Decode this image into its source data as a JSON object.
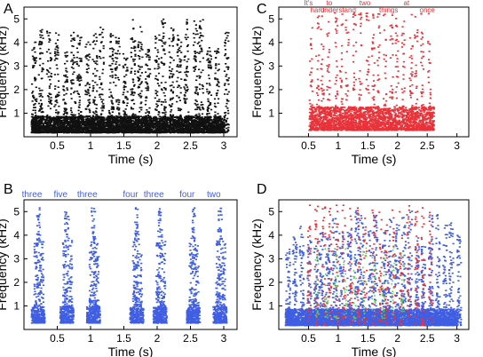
{
  "figure": {
    "panels": [
      {
        "letter": "A",
        "xlabel": "Time (s)",
        "ylabel": "Frequency (kHz)",
        "xticks": [
          "0.5",
          "1",
          "1.5",
          "2",
          "2.5",
          "3"
        ],
        "yticks": [
          "1",
          "2",
          "3",
          "4",
          "5"
        ],
        "words": [],
        "color": "#000000"
      },
      {
        "letter": "C",
        "xlabel": "Time (s)",
        "ylabel": "Frequency (kHz)",
        "xticks": [
          "0.5",
          "1",
          "1.5",
          "2",
          "2.5",
          "3"
        ],
        "yticks": [
          "1",
          "2",
          "3",
          "4",
          "5"
        ],
        "words": [
          "It's",
          "hard",
          "to",
          "understand",
          "two",
          "things",
          "at",
          "once"
        ],
        "color": "#e8333a"
      },
      {
        "letter": "B",
        "xlabel": "Time (s)",
        "ylabel": "Frequency (kHz)",
        "xticks": [
          "0.5",
          "1",
          "1.5",
          "2",
          "2.5",
          "3"
        ],
        "yticks": [
          "1",
          "2",
          "3",
          "4",
          "5"
        ],
        "words": [
          "three",
          "five",
          "three",
          "four",
          "three",
          "four",
          "two"
        ],
        "color": "#3f5ee3"
      },
      {
        "letter": "D",
        "xlabel": "Time (s)",
        "ylabel": "Frequency (kHz)",
        "xticks": [
          "0.5",
          "1",
          "1.5",
          "2",
          "2.5",
          "3"
        ],
        "yticks": [
          "1",
          "2",
          "3",
          "4",
          "5"
        ],
        "words": [],
        "color": "#3f5ee3"
      }
    ],
    "colors": {
      "speech1": "#3f5ee3",
      "speech2": "#e8333a",
      "overlap": "#5ad25a",
      "bg": "#ffffff",
      "axis": "#000000"
    }
  },
  "chart_data": [
    {
      "type": "heatmap",
      "subtype": "spectrogram",
      "panel": "A",
      "xlabel": "Time (s)",
      "ylabel": "Frequency (kHz)",
      "xlim": [
        0,
        3.2
      ],
      "ylim": [
        0,
        5.5
      ]
    },
    {
      "type": "heatmap",
      "subtype": "spectrogram",
      "panel": "B",
      "xlabel": "Time (s)",
      "ylabel": "Frequency (kHz)",
      "xlim": [
        0,
        3.2
      ],
      "ylim": [
        0,
        5.5
      ],
      "word_labels": [
        "three",
        "five",
        "three",
        "four",
        "three",
        "four",
        "two"
      ],
      "word_times": [
        0.12,
        0.55,
        0.95,
        1.6,
        1.95,
        2.45,
        2.85
      ]
    },
    {
      "type": "heatmap",
      "subtype": "spectrogram",
      "panel": "C",
      "xlabel": "Time (s)",
      "ylabel": "Frequency (kHz)",
      "xlim": [
        0,
        3.2
      ],
      "ylim": [
        0,
        5.5
      ],
      "word_labels": [
        "It's",
        "hard",
        "to",
        "understand",
        "two",
        "things",
        "at",
        "once"
      ],
      "word_times": [
        0.5,
        0.65,
        0.85,
        1.0,
        1.45,
        1.85,
        2.15,
        2.5
      ]
    },
    {
      "type": "heatmap",
      "subtype": "spectrogram",
      "panel": "D",
      "xlabel": "Time (s)",
      "ylabel": "Frequency (kHz)",
      "xlim": [
        0,
        3.2
      ],
      "ylim": [
        0,
        5.5
      ]
    }
  ]
}
